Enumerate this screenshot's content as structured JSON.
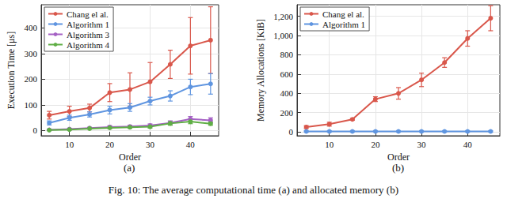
{
  "caption": "Fig. 10: The average computational time (a) and allocated memory (b)",
  "chart_data": [
    {
      "type": "line",
      "panel_label": "(a)",
      "xlabel": "Order",
      "ylabel": "Execution Time [μs]",
      "x": [
        5,
        10,
        15,
        20,
        25,
        30,
        35,
        40,
        45
      ],
      "xlim": [
        3,
        47
      ],
      "xticks": [
        10,
        20,
        30,
        40
      ],
      "ylim": [
        -20,
        490
      ],
      "yticks": [
        0,
        100,
        200,
        300,
        400
      ],
      "grid": true,
      "legend": "top-left",
      "marker": "circle",
      "series": [
        {
          "name": "Chang el al.",
          "color": "#d9574b",
          "values": [
            60,
            75,
            88,
            148,
            160,
            190,
            258,
            330,
            352
          ],
          "error": [
            15,
            20,
            15,
            35,
            65,
            75,
            55,
            110,
            130
          ]
        },
        {
          "name": "Algorithm 1",
          "color": "#5f95e0",
          "values": [
            30,
            50,
            63,
            80,
            90,
            115,
            135,
            170,
            182
          ],
          "error": [
            8,
            10,
            10,
            15,
            15,
            15,
            20,
            30,
            40
          ]
        },
        {
          "name": "Algorithm 3",
          "color": "#a561c4",
          "values": [
            3,
            6,
            10,
            14,
            16,
            20,
            30,
            45,
            40
          ],
          "error": [
            2,
            3,
            3,
            5,
            5,
            6,
            8,
            10,
            10
          ]
        },
        {
          "name": "Algorithm 4",
          "color": "#5fae45",
          "values": [
            2,
            4,
            8,
            11,
            13,
            15,
            28,
            35,
            27
          ],
          "error": [
            2,
            2,
            2,
            3,
            4,
            5,
            7,
            8,
            6
          ]
        }
      ]
    },
    {
      "type": "line",
      "panel_label": "(b)",
      "xlabel": "Order",
      "ylabel": "Memory Allocations [KiB]",
      "x": [
        5,
        10,
        15,
        20,
        25,
        30,
        35,
        40,
        45
      ],
      "xlim": [
        3,
        47
      ],
      "xticks": [
        10,
        20,
        30,
        40
      ],
      "ylim": [
        -40,
        1320
      ],
      "yticks": [
        0,
        200,
        400,
        600,
        800,
        1000,
        1200
      ],
      "grid": true,
      "legend": "top-left",
      "marker": "circle",
      "series": [
        {
          "name": "Chang el al.",
          "color": "#d9574b",
          "values": [
            50,
            80,
            130,
            340,
            400,
            540,
            720,
            970,
            1180
          ],
          "error": [
            15,
            20,
            10,
            25,
            60,
            70,
            50,
            80,
            130
          ]
        },
        {
          "name": "Algorithm 1",
          "color": "#5f95e0",
          "values": [
            5,
            5,
            5,
            5,
            5,
            5,
            5,
            5,
            5
          ],
          "error": [
            8,
            8,
            8,
            8,
            8,
            8,
            8,
            8,
            8
          ]
        }
      ]
    }
  ]
}
